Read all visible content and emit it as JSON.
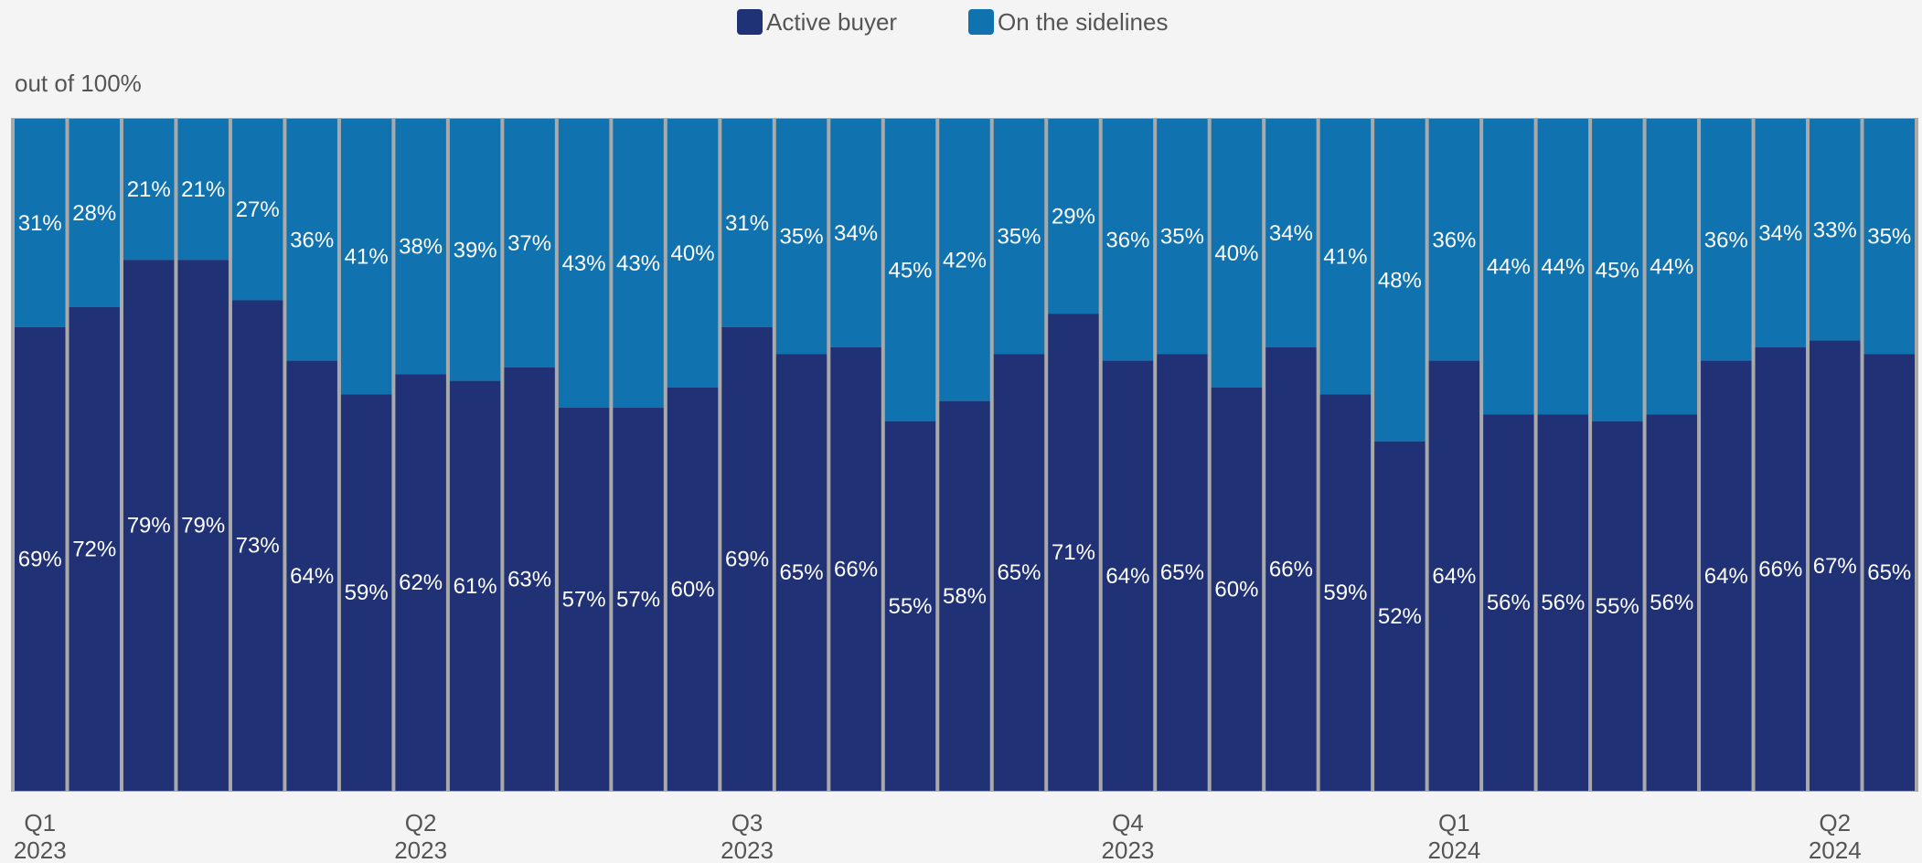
{
  "chart_data": {
    "type": "bar",
    "stacked": true,
    "subtitle": "out of 100%",
    "ylim": [
      0,
      100
    ],
    "grid": false,
    "legend_position": "top-center",
    "series": [
      {
        "name": "Active buyer",
        "color": "#213175",
        "values": [
          69,
          72,
          79,
          79,
          73,
          64,
          59,
          62,
          61,
          63,
          57,
          57,
          60,
          69,
          65,
          66,
          55,
          58,
          65,
          71,
          64,
          65,
          60,
          66,
          59,
          52,
          64,
          56,
          56,
          55,
          56,
          64,
          66,
          67,
          65
        ]
      },
      {
        "name": "On the sidelines",
        "color": "#1172b0",
        "values": [
          31,
          28,
          21,
          21,
          27,
          36,
          41,
          38,
          39,
          37,
          43,
          43,
          40,
          31,
          35,
          34,
          45,
          42,
          35,
          29,
          36,
          35,
          40,
          34,
          41,
          48,
          36,
          44,
          44,
          45,
          44,
          36,
          34,
          33,
          35
        ]
      }
    ],
    "x_ticks": [
      {
        "index": 0,
        "quarter": "Q1",
        "year": "2023"
      },
      {
        "index": 7,
        "quarter": "Q2",
        "year": "2023"
      },
      {
        "index": 13,
        "quarter": "Q3",
        "year": "2023"
      },
      {
        "index": 20,
        "quarter": "Q4",
        "year": "2023"
      },
      {
        "index": 26,
        "quarter": "Q1",
        "year": "2024"
      },
      {
        "index": 33,
        "quarter": "Q2",
        "year": "2024"
      }
    ],
    "label_suffix": "%"
  }
}
